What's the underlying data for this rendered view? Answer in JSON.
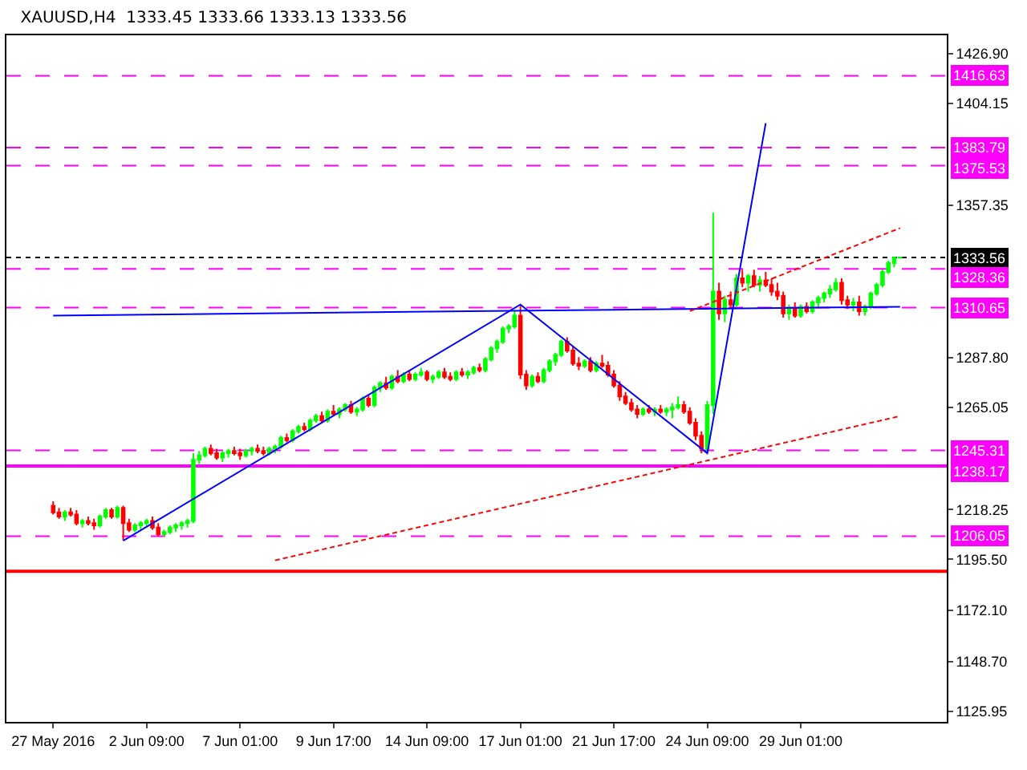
{
  "chart_data": {
    "type": "candlestick",
    "title": "XAUUSD,H4  1333.45 1333.66 1333.13 1333.56",
    "categories": [
      "27 May 2016",
      null,
      null,
      null,
      null,
      null,
      null,
      null,
      null,
      null,
      null,
      null,
      null,
      null,
      null,
      null,
      "2 Jun 09:00",
      null,
      null,
      null,
      null,
      null,
      null,
      null,
      null,
      null,
      null,
      null,
      null,
      null,
      null,
      null,
      "7 Jun 01:00",
      null,
      null,
      null,
      null,
      null,
      null,
      null,
      null,
      null,
      null,
      null,
      null,
      null,
      null,
      null,
      "9 Jun 17:00",
      null,
      null,
      null,
      null,
      null,
      null,
      null,
      null,
      null,
      null,
      null,
      null,
      null,
      null,
      null,
      "14 Jun 09:00",
      null,
      null,
      null,
      null,
      null,
      null,
      null,
      null,
      null,
      null,
      null,
      null,
      null,
      null,
      null,
      "17 Jun 01:00",
      null,
      null,
      null,
      null,
      null,
      null,
      null,
      null,
      null,
      null,
      null,
      null,
      null,
      null,
      null,
      "21 Jun 17:00",
      null,
      null,
      null,
      null,
      null,
      null,
      null,
      null,
      null,
      null,
      null,
      null,
      null,
      null,
      null,
      "24 Jun 09:00",
      null,
      null,
      null,
      null,
      null,
      null,
      null,
      null,
      null,
      null,
      null,
      null,
      null,
      null,
      null,
      "29 Jun 01:00",
      null,
      null,
      null,
      null,
      null,
      null,
      null,
      null,
      null,
      null,
      null,
      null,
      null,
      null,
      null,
      null,
      null
    ],
    "ohlc": [
      [
        1220,
        1222,
        1216,
        1217
      ],
      [
        1217,
        1219,
        1214,
        1215
      ],
      [
        1215,
        1218,
        1213,
        1217
      ],
      [
        1217,
        1219,
        1215,
        1216
      ],
      [
        1216,
        1218,
        1211,
        1212
      ],
      [
        1212,
        1214,
        1210,
        1213
      ],
      [
        1213,
        1215,
        1211,
        1212
      ],
      [
        1212,
        1214,
        1209,
        1211
      ],
      [
        1211,
        1216,
        1210,
        1215
      ],
      [
        1215,
        1219,
        1214,
        1218
      ],
      [
        1218,
        1219,
        1214,
        1215
      ],
      [
        1215,
        1220,
        1214,
        1219
      ],
      [
        1219,
        1220,
        1204,
        1212
      ],
      [
        1212,
        1214,
        1208,
        1209
      ],
      [
        1209,
        1212,
        1208,
        1211
      ],
      [
        1211,
        1213,
        1209,
        1212
      ],
      [
        1212,
        1214,
        1210,
        1213
      ],
      [
        1213,
        1215,
        1209,
        1210
      ],
      [
        1210,
        1212,
        1206,
        1207
      ],
      [
        1207,
        1209,
        1206,
        1208
      ],
      [
        1208,
        1211,
        1207,
        1210
      ],
      [
        1210,
        1212,
        1208,
        1211
      ],
      [
        1211,
        1213,
        1209,
        1212
      ],
      [
        1212,
        1214,
        1210,
        1213
      ],
      [
        1213,
        1244,
        1212,
        1241
      ],
      [
        1241,
        1245,
        1239,
        1243
      ],
      [
        1243,
        1247,
        1242,
        1246
      ],
      [
        1246,
        1248,
        1243,
        1244
      ],
      [
        1244,
        1246,
        1241,
        1242
      ],
      [
        1242,
        1245,
        1240,
        1244
      ],
      [
        1244,
        1246,
        1242,
        1245
      ],
      [
        1245,
        1247,
        1243,
        1244
      ],
      [
        1244,
        1246,
        1241,
        1243
      ],
      [
        1243,
        1246,
        1242,
        1245
      ],
      [
        1245,
        1247,
        1243,
        1246
      ],
      [
        1246,
        1248,
        1244,
        1245
      ],
      [
        1245,
        1247,
        1243,
        1244
      ],
      [
        1244,
        1247,
        1243,
        1246
      ],
      [
        1246,
        1248,
        1244,
        1247
      ],
      [
        1247,
        1252,
        1246,
        1251
      ],
      [
        1251,
        1253,
        1249,
        1250
      ],
      [
        1250,
        1255,
        1249,
        1254
      ],
      [
        1254,
        1257,
        1253,
        1256
      ],
      [
        1256,
        1258,
        1254,
        1255
      ],
      [
        1255,
        1260,
        1254,
        1259
      ],
      [
        1259,
        1262,
        1258,
        1261
      ],
      [
        1261,
        1263,
        1258,
        1259
      ],
      [
        1259,
        1264,
        1258,
        1263
      ],
      [
        1263,
        1266,
        1261,
        1262
      ],
      [
        1262,
        1265,
        1260,
        1264
      ],
      [
        1264,
        1267,
        1263,
        1266
      ],
      [
        1266,
        1268,
        1262,
        1263
      ],
      [
        1263,
        1265,
        1261,
        1264
      ],
      [
        1264,
        1270,
        1263,
        1269
      ],
      [
        1269,
        1271,
        1265,
        1266
      ],
      [
        1266,
        1275,
        1265,
        1274
      ],
      [
        1274,
        1277,
        1272,
        1276
      ],
      [
        1276,
        1279,
        1273,
        1274
      ],
      [
        1274,
        1280,
        1273,
        1279
      ],
      [
        1279,
        1282,
        1276,
        1277
      ],
      [
        1277,
        1281,
        1276,
        1280
      ],
      [
        1280,
        1282,
        1277,
        1278
      ],
      [
        1278,
        1281,
        1277,
        1280
      ],
      [
        1280,
        1283,
        1279,
        1281
      ],
      [
        1281,
        1282,
        1277,
        1278
      ],
      [
        1278,
        1280,
        1276,
        1279
      ],
      [
        1279,
        1282,
        1278,
        1281
      ],
      [
        1281,
        1283,
        1278,
        1279
      ],
      [
        1279,
        1281,
        1277,
        1278
      ],
      [
        1278,
        1282,
        1277,
        1281
      ],
      [
        1281,
        1283,
        1279,
        1280
      ],
      [
        1280,
        1282,
        1278,
        1281
      ],
      [
        1281,
        1284,
        1280,
        1283
      ],
      [
        1283,
        1285,
        1281,
        1282
      ],
      [
        1282,
        1288,
        1281,
        1287
      ],
      [
        1287,
        1293,
        1286,
        1292
      ],
      [
        1292,
        1296,
        1290,
        1295
      ],
      [
        1295,
        1302,
        1294,
        1301
      ],
      [
        1301,
        1303,
        1299,
        1302
      ],
      [
        1302,
        1309,
        1301,
        1307
      ],
      [
        1307,
        1312,
        1278,
        1280
      ],
      [
        1280,
        1282,
        1273,
        1275
      ],
      [
        1275,
        1280,
        1274,
        1279
      ],
      [
        1279,
        1281,
        1276,
        1277
      ],
      [
        1277,
        1283,
        1276,
        1282
      ],
      [
        1282,
        1287,
        1281,
        1286
      ],
      [
        1286,
        1290,
        1284,
        1289
      ],
      [
        1289,
        1296,
        1288,
        1295
      ],
      [
        1295,
        1297,
        1290,
        1291
      ],
      [
        1291,
        1293,
        1284,
        1285
      ],
      [
        1285,
        1288,
        1282,
        1284
      ],
      [
        1284,
        1287,
        1283,
        1286
      ],
      [
        1286,
        1288,
        1281,
        1282
      ],
      [
        1282,
        1286,
        1281,
        1285
      ],
      [
        1285,
        1289,
        1283,
        1284
      ],
      [
        1284,
        1286,
        1279,
        1280
      ],
      [
        1280,
        1282,
        1274,
        1275
      ],
      [
        1275,
        1277,
        1268,
        1270
      ],
      [
        1270,
        1272,
        1266,
        1267
      ],
      [
        1267,
        1269,
        1263,
        1264
      ],
      [
        1264,
        1266,
        1260,
        1262
      ],
      [
        1262,
        1265,
        1261,
        1264
      ],
      [
        1264,
        1266,
        1262,
        1263
      ],
      [
        1263,
        1265,
        1261,
        1264
      ],
      [
        1264,
        1266,
        1262,
        1263
      ],
      [
        1263,
        1265,
        1261,
        1264
      ],
      [
        1264,
        1267,
        1260,
        1265
      ],
      [
        1265,
        1270,
        1264,
        1266
      ],
      [
        1266,
        1268,
        1262,
        1263
      ],
      [
        1263,
        1265,
        1257,
        1258
      ],
      [
        1258,
        1260,
        1250,
        1252
      ],
      [
        1252,
        1254,
        1244,
        1246
      ],
      [
        1246,
        1268,
        1244,
        1266
      ],
      [
        1266,
        1354,
        1262,
        1318
      ],
      [
        1318,
        1322,
        1305,
        1308
      ],
      [
        1308,
        1316,
        1304,
        1314
      ],
      [
        1314,
        1318,
        1310,
        1312
      ],
      [
        1312,
        1326,
        1311,
        1324
      ],
      [
        1324,
        1328,
        1320,
        1322
      ],
      [
        1322,
        1326,
        1318,
        1325
      ],
      [
        1325,
        1328,
        1320,
        1321
      ],
      [
        1321,
        1325,
        1318,
        1323
      ],
      [
        1323,
        1327,
        1320,
        1321
      ],
      [
        1321,
        1324,
        1316,
        1318
      ],
      [
        1318,
        1322,
        1314,
        1316
      ],
      [
        1316,
        1318,
        1306,
        1308
      ],
      [
        1308,
        1312,
        1305,
        1310
      ],
      [
        1310,
        1313,
        1306,
        1307
      ],
      [
        1307,
        1312,
        1306,
        1311
      ],
      [
        1311,
        1313,
        1308,
        1309
      ],
      [
        1309,
        1314,
        1308,
        1313
      ],
      [
        1313,
        1316,
        1311,
        1315
      ],
      [
        1315,
        1318,
        1313,
        1317
      ],
      [
        1317,
        1321,
        1315,
        1319
      ],
      [
        1319,
        1324,
        1318,
        1322
      ],
      [
        1322,
        1324,
        1312,
        1314
      ],
      [
        1314,
        1316,
        1310,
        1312
      ],
      [
        1312,
        1315,
        1309,
        1313
      ],
      [
        1313,
        1316,
        1307,
        1309
      ],
      [
        1309,
        1312,
        1307,
        1311
      ],
      [
        1311,
        1318,
        1310,
        1317
      ],
      [
        1317,
        1322,
        1316,
        1321
      ],
      [
        1321,
        1328,
        1320,
        1327
      ],
      [
        1327,
        1332,
        1326,
        1331
      ],
      [
        1331,
        1334,
        1329,
        1333.45
      ],
      [
        1333.45,
        1333.66,
        1333.13,
        1333.56
      ]
    ],
    "series": [
      {
        "type": "line",
        "color": "#0000ff",
        "line_style": "solid",
        "values": [
          null,
          null,
          null,
          null,
          null,
          null,
          null,
          null,
          null,
          null,
          null,
          null,
          1204,
          null,
          null,
          null,
          null,
          null,
          null,
          null,
          null,
          null,
          null,
          null,
          null,
          null,
          null,
          null,
          null,
          null,
          null,
          null,
          null,
          null,
          null,
          null,
          null,
          null,
          null,
          null,
          null,
          null,
          null,
          null,
          null,
          null,
          null,
          null,
          null,
          null,
          null,
          null,
          null,
          null,
          null,
          null,
          null,
          null,
          null,
          null,
          null,
          null,
          null,
          null,
          null,
          null,
          null,
          null,
          null,
          null,
          null,
          null,
          null,
          null,
          null,
          null,
          null,
          null,
          null,
          null,
          1312,
          null,
          null,
          null,
          null,
          null,
          null,
          null,
          null,
          null,
          null,
          null,
          null,
          null,
          null,
          null,
          null,
          null,
          null,
          null,
          null,
          null,
          null,
          null,
          null,
          null,
          null,
          null,
          null,
          null,
          null,
          null,
          1244,
          null,
          null,
          null,
          null,
          null,
          null,
          null,
          null,
          null,
          1395,
          null,
          null,
          null,
          null,
          null,
          null,
          null,
          null,
          null,
          null,
          null,
          null,
          null,
          null,
          null,
          null,
          null,
          null,
          null,
          null,
          null,
          null,
          null
        ]
      },
      {
        "type": "line",
        "color": "#0000ff",
        "line_style": "solid",
        "values": [
          1307,
          null,
          null,
          null,
          null,
          null,
          null,
          null,
          null,
          null,
          null,
          null,
          null,
          null,
          null,
          null,
          null,
          null,
          null,
          null,
          null,
          null,
          null,
          null,
          null,
          null,
          null,
          null,
          null,
          null,
          null,
          null,
          null,
          null,
          null,
          null,
          null,
          null,
          null,
          null,
          null,
          null,
          null,
          null,
          null,
          null,
          null,
          null,
          null,
          null,
          null,
          null,
          null,
          null,
          null,
          null,
          null,
          null,
          null,
          null,
          null,
          null,
          null,
          null,
          null,
          null,
          null,
          null,
          null,
          null,
          null,
          null,
          null,
          null,
          null,
          null,
          null,
          null,
          null,
          null,
          null,
          null,
          null,
          null,
          null,
          null,
          null,
          null,
          null,
          null,
          null,
          null,
          null,
          null,
          null,
          null,
          null,
          null,
          null,
          null,
          null,
          null,
          null,
          null,
          null,
          null,
          null,
          null,
          null,
          null,
          null,
          null,
          null,
          null,
          null,
          null,
          null,
          null,
          null,
          null,
          null,
          null,
          null,
          null,
          null,
          null,
          null,
          null,
          null,
          null,
          null,
          null,
          null,
          null,
          null,
          null,
          null,
          null,
          null,
          null,
          null,
          null,
          null,
          null,
          null,
          1311
        ]
      },
      {
        "type": "line",
        "color": "#ff0000",
        "line_style": "dashed",
        "values": [
          null,
          null,
          null,
          null,
          null,
          null,
          null,
          null,
          null,
          null,
          null,
          null,
          null,
          null,
          null,
          null,
          null,
          null,
          null,
          null,
          null,
          null,
          null,
          null,
          null,
          null,
          null,
          null,
          null,
          null,
          null,
          null,
          null,
          null,
          null,
          null,
          null,
          null,
          null,
          null,
          null,
          null,
          null,
          null,
          null,
          null,
          null,
          null,
          null,
          null,
          null,
          null,
          null,
          null,
          null,
          null,
          null,
          null,
          null,
          null,
          null,
          null,
          null,
          null,
          null,
          null,
          null,
          null,
          null,
          null,
          null,
          null,
          null,
          null,
          null,
          null,
          null,
          null,
          null,
          null,
          null,
          null,
          null,
          null,
          null,
          null,
          null,
          null,
          null,
          null,
          null,
          null,
          null,
          null,
          null,
          null,
          null,
          null,
          null,
          null,
          null,
          null,
          null,
          null,
          null,
          null,
          null,
          null,
          null,
          1309,
          null,
          null,
          null,
          null,
          null,
          null,
          null,
          null,
          null,
          null,
          null,
          null,
          null,
          null,
          null,
          null,
          null,
          null,
          null,
          null,
          null,
          null,
          null,
          null,
          null,
          null,
          null,
          null,
          null,
          null,
          null,
          null,
          null,
          null,
          null,
          1347
        ]
      },
      {
        "type": "line",
        "color": "#ff0000",
        "line_style": "dashed",
        "values": [
          null,
          null,
          null,
          null,
          null,
          null,
          null,
          null,
          null,
          null,
          null,
          null,
          null,
          null,
          null,
          null,
          null,
          null,
          null,
          null,
          null,
          null,
          null,
          null,
          null,
          null,
          null,
          null,
          null,
          null,
          null,
          null,
          null,
          null,
          null,
          null,
          null,
          null,
          1195,
          null,
          null,
          null,
          null,
          null,
          null,
          null,
          null,
          null,
          null,
          null,
          null,
          null,
          null,
          null,
          null,
          null,
          null,
          null,
          null,
          null,
          null,
          null,
          null,
          null,
          null,
          null,
          null,
          null,
          null,
          null,
          null,
          null,
          null,
          null,
          null,
          null,
          null,
          null,
          null,
          null,
          null,
          null,
          null,
          null,
          null,
          null,
          null,
          null,
          null,
          null,
          null,
          null,
          null,
          null,
          null,
          null,
          null,
          null,
          null,
          null,
          null,
          null,
          null,
          null,
          null,
          null,
          null,
          null,
          null,
          null,
          null,
          null,
          null,
          null,
          null,
          null,
          null,
          null,
          null,
          null,
          null,
          null,
          null,
          null,
          null,
          null,
          null,
          null,
          null,
          null,
          null,
          null,
          null,
          null,
          null,
          null,
          null,
          null,
          null,
          null,
          null,
          null,
          null,
          null,
          null,
          1261
        ]
      }
    ],
    "ylim": [
      1121.1,
      1435.2
    ],
    "yticks": [
      {
        "value": 1426.9,
        "label": "1426.90"
      },
      {
        "value": 1404.15,
        "label": "1404.15"
      },
      {
        "value": 1357.35,
        "label": "1357.35"
      },
      {
        "value": 1287.8,
        "label": "1287.80"
      },
      {
        "value": 1265.05,
        "label": "1265.05"
      },
      {
        "value": 1218.25,
        "label": "1218.25"
      },
      {
        "value": 1195.5,
        "label": "1195.50"
      },
      {
        "value": 1172.1,
        "label": "1172.10"
      },
      {
        "value": 1148.7,
        "label": "1148.70"
      },
      {
        "value": 1125.95,
        "label": "1125.95"
      }
    ],
    "ref_lines": [
      {
        "axis": "y",
        "value": 1416.63,
        "label": "1416.63",
        "color": "#ff00ff",
        "line_style": "dashed"
      },
      {
        "axis": "y",
        "value": 1383.79,
        "label": "1383.79",
        "color": "#ff00ff",
        "line_style": "dashed"
      },
      {
        "axis": "y",
        "value": 1375.53,
        "label": "1375.53",
        "color": "#ff00ff",
        "line_style": "dashed"
      },
      {
        "axis": "y",
        "value": 1333.56,
        "label": "1333.56",
        "color": "#000000",
        "line_style": "dotted"
      },
      {
        "axis": "y",
        "value": 1328.36,
        "label": "1328.36",
        "color": "#ff00ff",
        "line_style": "dashed"
      },
      {
        "axis": "y",
        "value": 1310.65,
        "label": "1310.65",
        "color": "#ff00ff",
        "line_style": "dashed"
      },
      {
        "axis": "y",
        "value": 1245.31,
        "label": "1245.31",
        "color": "#ff00ff",
        "line_style": "dashed"
      },
      {
        "axis": "y",
        "value": 1238.17,
        "label": "1238.17",
        "color": "#ff00ff",
        "line_style": "solid"
      },
      {
        "axis": "y",
        "value": 1206.05,
        "label": "1206.05",
        "color": "#ff00ff",
        "line_style": "dashed"
      },
      {
        "axis": "y",
        "value": 1190,
        "color": "#ff0000",
        "line_style": "solid"
      }
    ],
    "tick_labels": "xy"
  }
}
